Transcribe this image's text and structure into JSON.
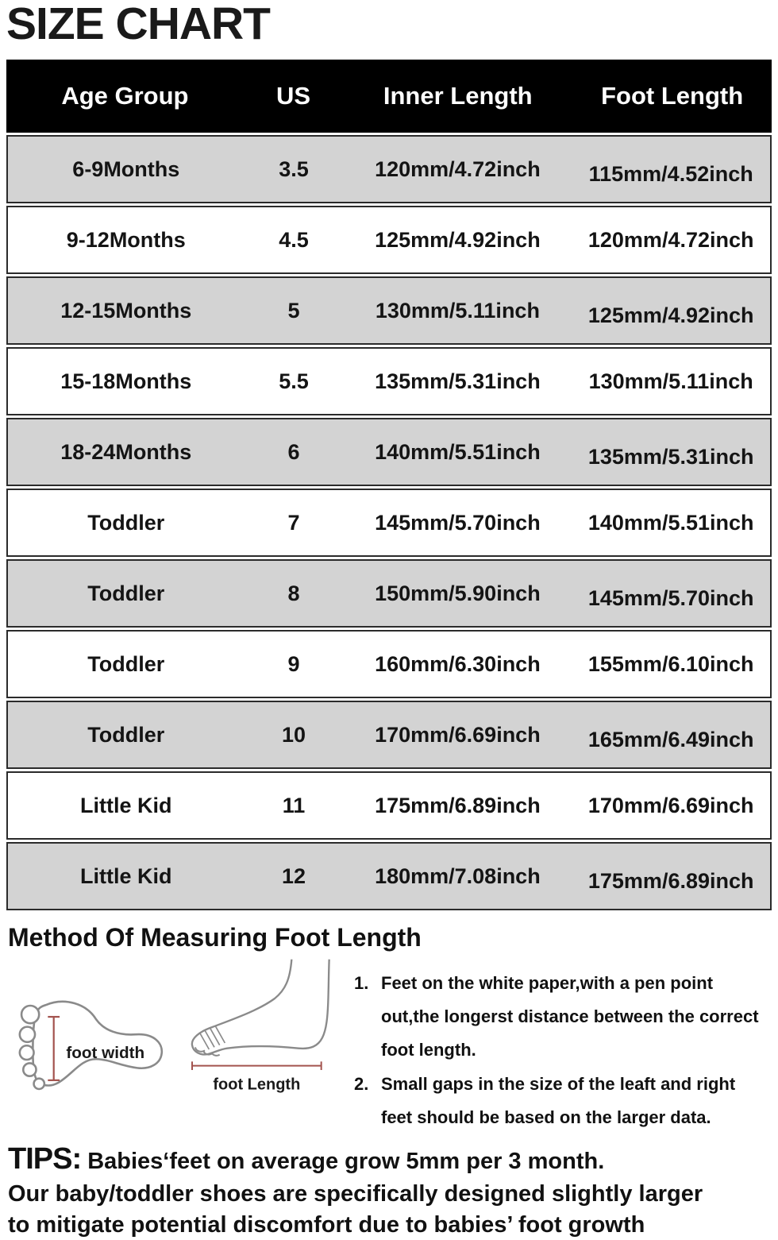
{
  "title": "SIZE CHART",
  "table": {
    "headers": [
      "Age Group",
      "US",
      "Inner Length",
      "Foot Length"
    ],
    "rows": [
      [
        "6-9Months",
        "3.5",
        "120mm/4.72inch",
        "115mm/4.52inch"
      ],
      [
        "9-12Months",
        "4.5",
        "125mm/4.92inch",
        "120mm/4.72inch"
      ],
      [
        "12-15Months",
        "5",
        "130mm/5.11inch",
        "125mm/4.92inch"
      ],
      [
        "15-18Months",
        "5.5",
        "135mm/5.31inch",
        "130mm/5.11inch"
      ],
      [
        "18-24Months",
        "6",
        "140mm/5.51inch",
        "135mm/5.31inch"
      ],
      [
        "Toddler",
        "7",
        "145mm/5.70inch",
        "140mm/5.51inch"
      ],
      [
        "Toddler",
        "8",
        "150mm/5.90inch",
        "145mm/5.70inch"
      ],
      [
        "Toddler",
        "9",
        "160mm/6.30inch",
        "155mm/6.10inch"
      ],
      [
        "Toddler",
        "10",
        "170mm/6.69inch",
        "165mm/6.49inch"
      ],
      [
        "Little Kid",
        "11",
        "175mm/6.89inch",
        "170mm/6.69inch"
      ],
      [
        "Little Kid",
        "12",
        "180mm/7.08inch",
        "175mm/6.89inch"
      ]
    ]
  },
  "method": {
    "heading": "Method Of Measuring Foot Length",
    "foot_width_label": "foot width",
    "foot_length_label": "foot Length",
    "instructions": [
      {
        "num": "1.",
        "text": "Feet on the white paper,with a pen point out,the longerst distance between the correct foot length."
      },
      {
        "num": "2.",
        "text": "Small gaps in the size of the leaft and right feet should be based on the larger data."
      }
    ]
  },
  "tips": {
    "label": "TIPS:",
    "line1": "Babies‘feet on average grow 5mm per 3 month.",
    "line2": "Our baby/toddler shoes are specifically designed slightly larger",
    "line3": "to mitigate potential discomfort due to babies’ foot growth"
  },
  "colors": {
    "header_bg": "#000000",
    "header_text": "#ffffff",
    "row_gray": "#d3d3d3",
    "row_white": "#ffffff",
    "border": "#2b2b2b",
    "measure_line": "#a3534e",
    "foot_outline": "#8a8a8a",
    "text": "#141414"
  }
}
